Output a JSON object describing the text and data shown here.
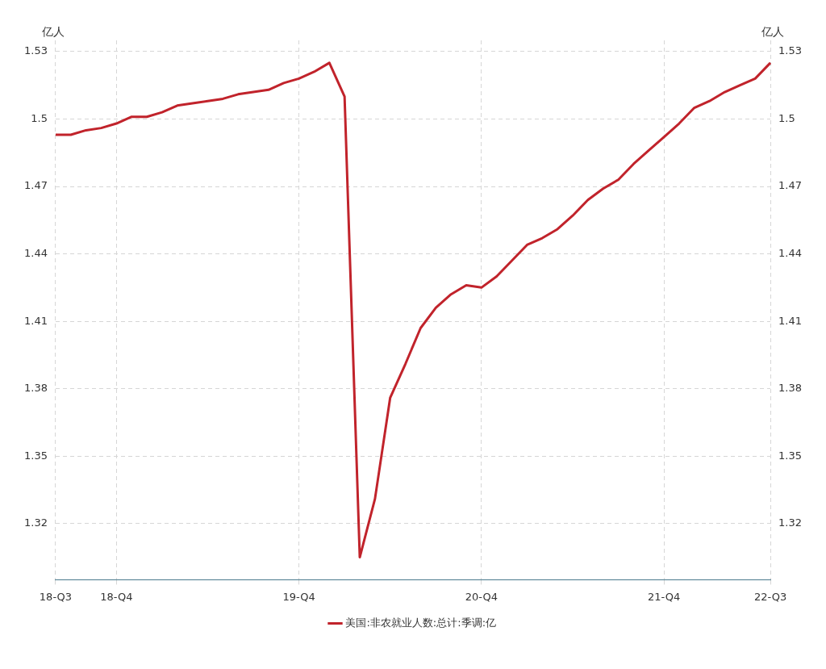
{
  "chart_data": {
    "type": "line",
    "ylabel": "亿人",
    "y2label": "亿人",
    "categories": [
      "18-Q3",
      null,
      null,
      null,
      "18-Q4",
      null,
      null,
      null,
      null,
      null,
      null,
      null,
      null,
      null,
      null,
      null,
      "19-Q4",
      null,
      null,
      null,
      null,
      null,
      null,
      null,
      null,
      null,
      null,
      null,
      "20-Q4",
      null,
      null,
      null,
      null,
      null,
      null,
      null,
      null,
      null,
      null,
      null,
      "21-Q4",
      null,
      null,
      null,
      null,
      null,
      null,
      "22-Q3"
    ],
    "series": [
      {
        "name": "美国:非农就业人数:总计:季调:亿",
        "color": "#c1232b",
        "values": [
          1.493,
          1.493,
          1.495,
          1.496,
          1.498,
          1.501,
          1.501,
          1.503,
          1.506,
          1.507,
          1.508,
          1.509,
          1.511,
          1.512,
          1.513,
          1.516,
          1.518,
          1.521,
          1.525,
          1.51,
          1.305,
          1.331,
          1.376,
          1.391,
          1.407,
          1.416,
          1.422,
          1.426,
          1.425,
          1.43,
          1.437,
          1.444,
          1.447,
          1.451,
          1.457,
          1.464,
          1.469,
          1.473,
          1.48,
          1.486,
          1.492,
          1.498,
          1.505,
          1.508,
          1.512,
          1.515,
          1.518,
          1.525
        ]
      }
    ],
    "ylim": [
      1.295,
      1.535
    ],
    "yticks": [
      1.32,
      1.35,
      1.38,
      1.41,
      1.44,
      1.47,
      1.5,
      1.53
    ],
    "y2lim": [
      1.295,
      1.535
    ],
    "y2ticks": [
      1.32,
      1.35,
      1.38,
      1.41,
      1.44,
      1.47,
      1.5,
      1.53
    ],
    "grid": true,
    "legend": "bottom",
    "marker": "none",
    "line_style": "solid"
  }
}
